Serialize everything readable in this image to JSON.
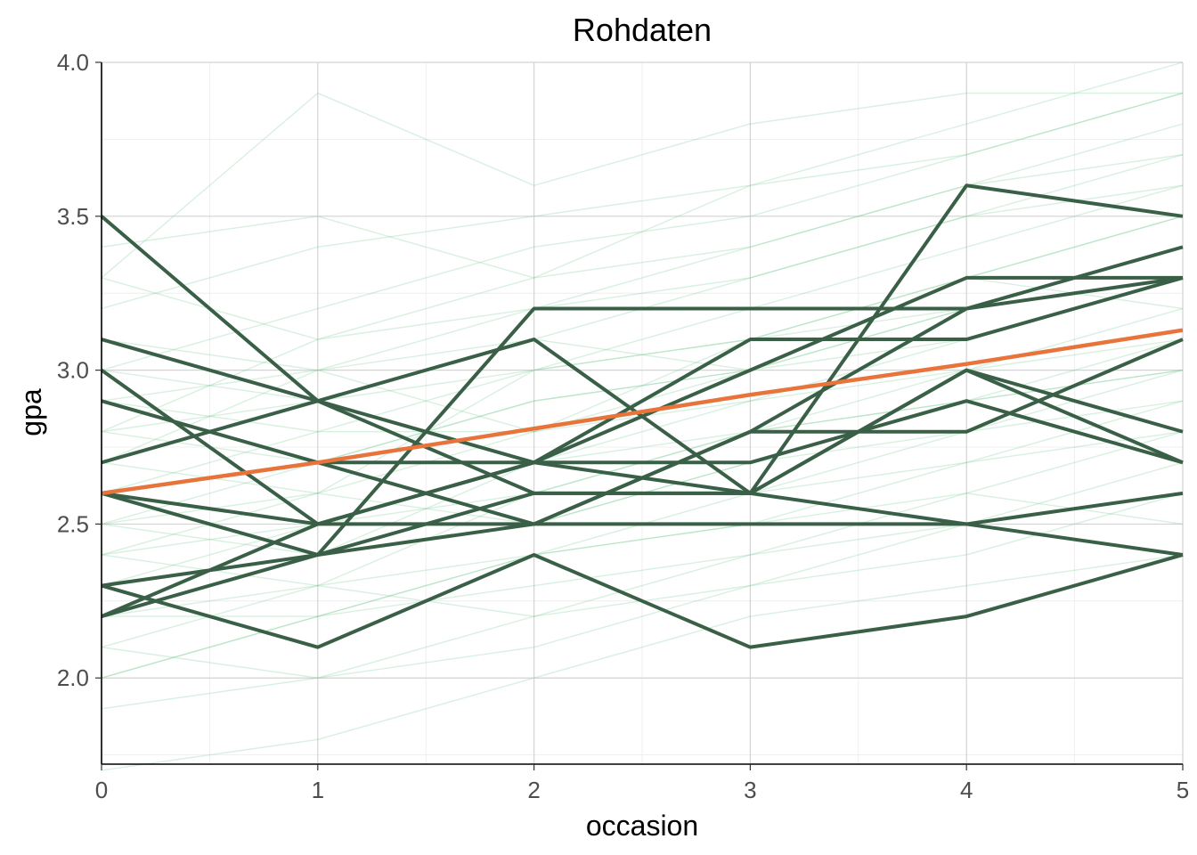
{
  "chart_data": {
    "type": "line",
    "title": "Rohdaten",
    "xlabel": "occasion",
    "ylabel": "gpa",
    "xlim": [
      0,
      5
    ],
    "ylim": [
      1.72,
      4.0
    ],
    "x_ticks": [
      "0",
      "1",
      "2",
      "3",
      "4",
      "5"
    ],
    "y_ticks": [
      "2.0",
      "2.5",
      "3.0",
      "3.5",
      "4.0"
    ],
    "grid": true,
    "legend": "none",
    "x": [
      0,
      1,
      2,
      3,
      4,
      5
    ],
    "colors": {
      "background_lines": "#74c98f",
      "highlighted_lines": "#3a5f47",
      "mean_line": "#e8743b"
    },
    "highlighted_series": [
      [
        3.5,
        2.9,
        2.7,
        2.6,
        3.0,
        2.7
      ],
      [
        3.1,
        2.9,
        2.6,
        2.6,
        2.5,
        2.6
      ],
      [
        3.0,
        2.5,
        2.5,
        2.8,
        3.2,
        3.4
      ],
      [
        2.9,
        2.7,
        2.5,
        2.5,
        2.5,
        2.4
      ],
      [
        2.7,
        2.9,
        3.1,
        2.6,
        3.0,
        2.8
      ],
      [
        2.6,
        2.4,
        3.2,
        3.2,
        3.2,
        3.3
      ],
      [
        2.6,
        2.7,
        2.7,
        2.7,
        2.9,
        2.7
      ],
      [
        2.6,
        2.5,
        2.7,
        3.0,
        3.3,
        3.3
      ],
      [
        2.3,
        2.1,
        2.4,
        2.1,
        2.2,
        2.4
      ],
      [
        2.3,
        2.4,
        2.5,
        2.8,
        2.8,
        3.1
      ],
      [
        2.2,
        2.5,
        2.7,
        3.1,
        3.1,
        3.3
      ],
      [
        2.2,
        2.4,
        2.6,
        2.6,
        3.6,
        3.5
      ]
    ],
    "background_series": [
      [
        1.7,
        1.8,
        2.0,
        2.2,
        2.3,
        2.4
      ],
      [
        1.9,
        2.0,
        2.1,
        2.3,
        2.4,
        2.6
      ],
      [
        2.0,
        2.2,
        2.3,
        2.4,
        2.5,
        2.7
      ],
      [
        2.1,
        2.3,
        2.4,
        2.5,
        2.6,
        2.8
      ],
      [
        2.2,
        2.2,
        2.4,
        2.6,
        2.8,
        2.9
      ],
      [
        2.3,
        2.5,
        2.5,
        2.7,
        2.9,
        3.1
      ],
      [
        2.4,
        2.3,
        2.6,
        2.8,
        2.9,
        3.0
      ],
      [
        2.4,
        2.6,
        2.8,
        2.9,
        3.0,
        3.2
      ],
      [
        2.5,
        2.4,
        2.7,
        2.9,
        3.1,
        3.3
      ],
      [
        2.5,
        2.7,
        2.9,
        3.0,
        3.3,
        3.5
      ],
      [
        2.6,
        2.8,
        2.8,
        3.1,
        3.2,
        3.4
      ],
      [
        2.7,
        2.6,
        3.0,
        3.2,
        3.4,
        3.6
      ],
      [
        2.7,
        3.0,
        3.1,
        3.3,
        3.5,
        3.7
      ],
      [
        2.8,
        2.7,
        2.9,
        3.0,
        3.2,
        3.3
      ],
      [
        2.8,
        3.1,
        3.2,
        3.4,
        3.6,
        3.8
      ],
      [
        2.9,
        2.8,
        3.0,
        3.1,
        3.3,
        3.5
      ],
      [
        3.0,
        3.2,
        3.4,
        3.5,
        3.7,
        3.9
      ],
      [
        3.1,
        3.0,
        3.2,
        3.3,
        3.5,
        3.6
      ],
      [
        3.2,
        3.4,
        3.5,
        3.6,
        3.8,
        4.0
      ],
      [
        3.3,
        3.1,
        3.3,
        3.4,
        3.6,
        3.7
      ],
      [
        3.4,
        3.5,
        3.3,
        3.6,
        3.7,
        3.9
      ],
      [
        2.4,
        2.5,
        2.6,
        2.6,
        2.7,
        2.8
      ],
      [
        2.6,
        2.5,
        2.7,
        2.8,
        2.9,
        3.0
      ],
      [
        2.8,
        2.9,
        3.0,
        3.1,
        3.3,
        3.2
      ],
      [
        2.2,
        2.3,
        2.2,
        2.4,
        2.6,
        2.5
      ],
      [
        2.0,
        2.2,
        2.4,
        2.5,
        2.7,
        2.9
      ],
      [
        3.0,
        2.9,
        3.1,
        3.0,
        3.2,
        3.4
      ],
      [
        2.5,
        2.6,
        2.5,
        2.7,
        2.8,
        3.0
      ],
      [
        2.3,
        2.4,
        2.6,
        2.8,
        3.0,
        3.1
      ],
      [
        2.9,
        3.0,
        2.8,
        3.0,
        3.1,
        3.3
      ],
      [
        3.3,
        3.9,
        3.6,
        3.8,
        3.9,
        3.9
      ],
      [
        2.1,
        2.0,
        2.2,
        2.3,
        2.5,
        2.6
      ]
    ],
    "mean_line": [
      2.6,
      2.7,
      2.81,
      2.92,
      3.02,
      3.13
    ]
  }
}
